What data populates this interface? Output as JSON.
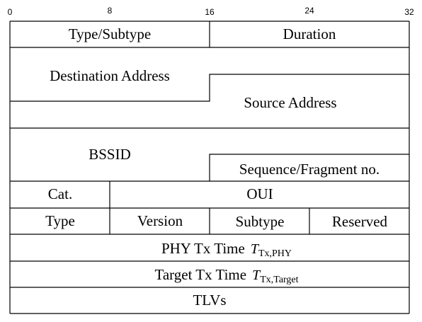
{
  "bit_scale": [
    "0",
    "8",
    "16",
    "24",
    "32"
  ],
  "fields": {
    "type_subtype": "Type/Subtype",
    "duration": "Duration",
    "destination_address": "Destination Address",
    "source_address": "Source Address",
    "bssid": "BSSID",
    "sequence_fragment": "Sequence/Fragment no.",
    "cat": "Cat.",
    "oui": "OUI",
    "type": "Type",
    "version": "Version",
    "subtype": "Subtype",
    "reserved": "Reserved",
    "phy_tx_time": "PHY Tx Time",
    "phy_tx_symbol": "T",
    "phy_tx_subscript": "Tx,PHY",
    "target_tx_time": "Target Tx Time",
    "target_tx_symbol": "T",
    "target_tx_subscript": "Tx,Target",
    "tlvs": "TLVs"
  }
}
